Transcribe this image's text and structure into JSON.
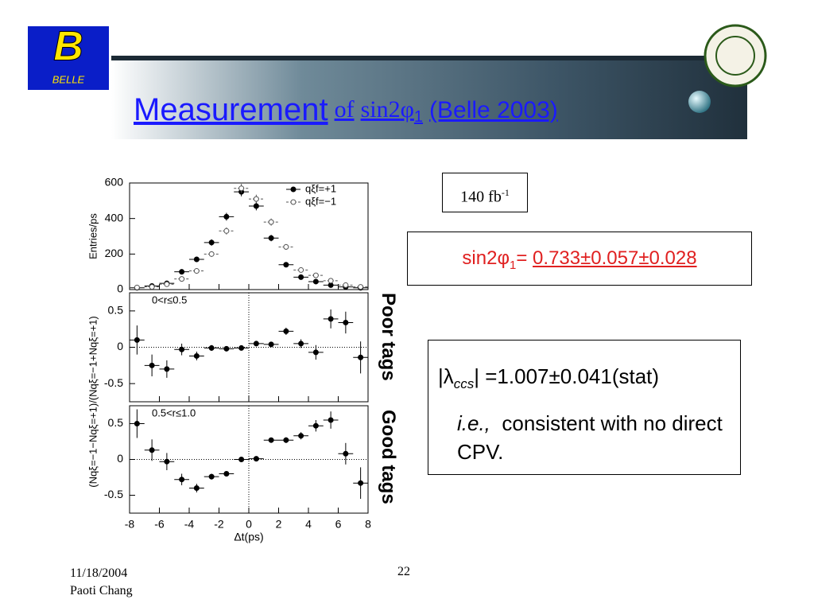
{
  "header": {
    "title_main": "Measurement",
    "title_of": "of",
    "title_sin": "sin2",
    "title_phi": "φ",
    "title_sub": "1",
    "title_rest": "(Belle 2003)",
    "logo": "BELLE"
  },
  "luminosity": {
    "text": "140 fb",
    "sup": "-1"
  },
  "result": {
    "label": "sin2φ",
    "sub": "1",
    "eq": "=",
    "value": "0.733±0.057±0.028"
  },
  "direct_cpv": {
    "lambda": "|λ",
    "sub": "ccs",
    "value": "| =1.007±0.041(stat)",
    "ie": "i.e.,",
    "text": "consistent with no direct CPV."
  },
  "side_labels": {
    "poor": "Poor tags",
    "good": "Good tags"
  },
  "footer": {
    "date": "11/18/2004",
    "author": "Paoti Chang",
    "page": "22"
  },
  "chart_data": [
    {
      "type": "scatter",
      "ylabel": "Entries/ps",
      "xlim": [
        -8,
        8
      ],
      "ylim": [
        0,
        600
      ],
      "yticks": [
        0,
        200,
        400,
        600
      ],
      "xticks": [
        -8,
        -6,
        -4,
        -2,
        0,
        2,
        4,
        6,
        8
      ],
      "x": [
        -7.5,
        -6.5,
        -5.5,
        -4.5,
        -3.5,
        -2.5,
        -1.5,
        -0.5,
        0.5,
        1.5,
        2.5,
        3.5,
        4.5,
        5.5,
        6.5,
        7.5
      ],
      "series": [
        {
          "name": "qξf=+1",
          "color": "#000000",
          "marker": "filled",
          "values": [
            10,
            20,
            35,
            100,
            170,
            265,
            410,
            550,
            470,
            290,
            140,
            70,
            45,
            25,
            15,
            10
          ],
          "errors": [
            5,
            6,
            8,
            12,
            15,
            18,
            22,
            25,
            24,
            18,
            14,
            10,
            8,
            6,
            5,
            4
          ]
        },
        {
          "name": "qξf=−1",
          "color": "#555555",
          "marker": "open",
          "values": [
            12,
            15,
            30,
            60,
            105,
            200,
            330,
            570,
            510,
            380,
            240,
            110,
            80,
            50,
            25,
            15
          ],
          "errors": [
            5,
            6,
            8,
            10,
            12,
            16,
            20,
            25,
            24,
            20,
            16,
            12,
            10,
            8,
            6,
            5
          ]
        }
      ]
    },
    {
      "type": "scatter",
      "ylabel": "(Nqξ=−1−Nqξ=+1)/(Nqξ=−1+Nqξ=+1)",
      "annotation": "0<r≤0.5",
      "reference_lines": true,
      "xlim": [
        -8,
        8
      ],
      "ylim": [
        -0.75,
        0.75
      ],
      "yticks": [
        -0.5,
        0,
        0.5
      ],
      "xticks": [
        -8,
        -6,
        -4,
        -2,
        0,
        2,
        4,
        6,
        8
      ],
      "x": [
        -7.5,
        -6.5,
        -5.5,
        -4.5,
        -3.5,
        -2.5,
        -1.5,
        -0.5,
        0.5,
        1.5,
        2.5,
        3.5,
        4.5,
        5.5,
        6.5,
        7.5
      ],
      "series": [
        {
          "color": "#000000",
          "marker": "filled",
          "values": [
            0.1,
            -0.25,
            -0.3,
            -0.03,
            -0.12,
            -0.01,
            -0.02,
            -0.01,
            0.05,
            0.04,
            0.22,
            0.05,
            -0.07,
            0.39,
            0.34,
            -0.14
          ],
          "errors": [
            0.2,
            0.15,
            0.12,
            0.08,
            0.06,
            0.04,
            0.03,
            0.02,
            0.02,
            0.03,
            0.05,
            0.06,
            0.1,
            0.13,
            0.15,
            0.22
          ]
        }
      ]
    },
    {
      "type": "scatter",
      "xlabel": "Δt(ps)",
      "annotation": "0.5<r≤1.0",
      "reference_lines": true,
      "xlim": [
        -8,
        8
      ],
      "ylim": [
        -0.75,
        0.75
      ],
      "yticks": [
        -0.5,
        0,
        0.5
      ],
      "xticks": [
        -8,
        -6,
        -4,
        -2,
        0,
        2,
        4,
        6,
        8
      ],
      "x": [
        -7.5,
        -6.5,
        -5.5,
        -4.5,
        -3.5,
        -2.5,
        -1.5,
        -0.5,
        0.5,
        1.5,
        2.5,
        3.5,
        4.5,
        5.5,
        6.5,
        7.5
      ],
      "series": [
        {
          "color": "#000000",
          "marker": "filled",
          "values": [
            0.5,
            0.13,
            -0.03,
            -0.28,
            -0.4,
            -0.24,
            -0.2,
            0,
            0.01,
            0.27,
            0.27,
            0.33,
            0.47,
            0.55,
            0.08,
            -0.33
          ],
          "errors": [
            0.2,
            0.15,
            0.12,
            0.08,
            0.06,
            0.04,
            0.03,
            0.02,
            0.02,
            0.03,
            0.04,
            0.05,
            0.08,
            0.12,
            0.15,
            0.22
          ]
        }
      ]
    }
  ]
}
